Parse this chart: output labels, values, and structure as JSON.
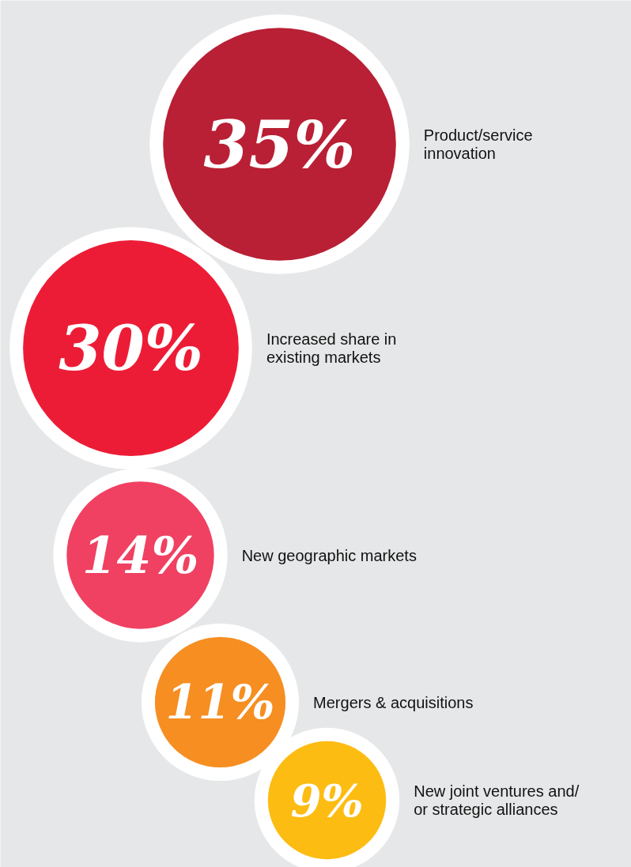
{
  "chart_data": {
    "type": "other",
    "categories": [
      "Product/service innovation",
      "Increased share in existing markets",
      "New geographic markets",
      "Mergers & acquisitions",
      "New joint ventures and/ or strategic alliances"
    ],
    "values": [
      35,
      30,
      14,
      11,
      9
    ],
    "value_labels": [
      "35%",
      "30%",
      "14%",
      "11%",
      "9%"
    ],
    "colors": [
      "#b92035",
      "#ed1c36",
      "#f04162",
      "#f68e22",
      "#fdbc12"
    ]
  }
}
